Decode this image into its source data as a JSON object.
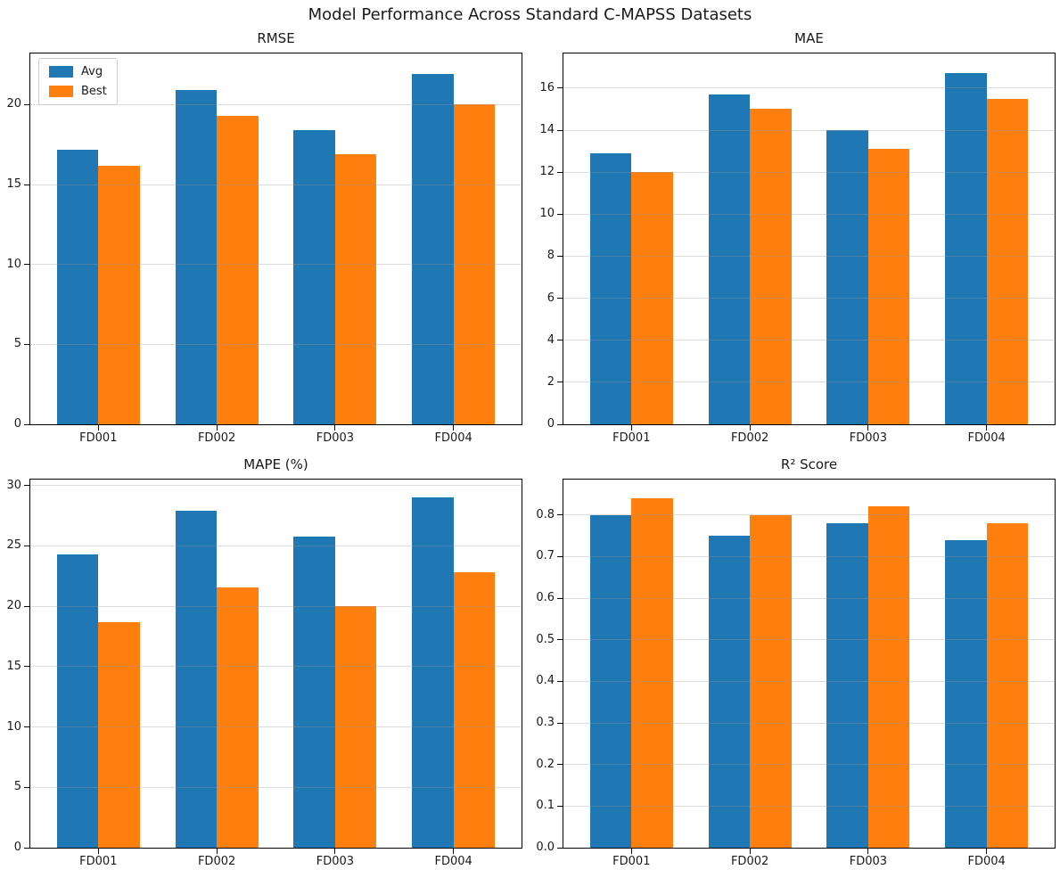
{
  "figure": {
    "title": "Model Performance Across Standard C-MAPSS Datasets"
  },
  "colors": {
    "avg": "#1f77b4",
    "best": "#ff7f0e",
    "grid": "#9a9a9a",
    "spine": "#000000",
    "background": "#ffffff"
  },
  "chart_data": [
    {
      "type": "bar",
      "title": "RMSE",
      "categories": [
        "FD001",
        "FD002",
        "FD003",
        "FD004"
      ],
      "series": [
        {
          "name": "Avg",
          "color": "#1f77b4",
          "values": [
            17.2,
            20.9,
            18.4,
            21.9
          ]
        },
        {
          "name": "Best",
          "color": "#ff7f0e",
          "values": [
            16.2,
            19.3,
            16.9,
            20.0
          ]
        }
      ],
      "ylim": [
        0,
        23.2
      ],
      "yticks": [
        0,
        5,
        10,
        15,
        20
      ],
      "ytick_labels": [
        "0",
        "5",
        "10",
        "15",
        "20"
      ],
      "xlabel": "",
      "ylabel": "",
      "grid": true,
      "bar_width": 0.35,
      "legend": true,
      "legend_position": "upper left"
    },
    {
      "type": "bar",
      "title": "MAE",
      "categories": [
        "FD001",
        "FD002",
        "FD003",
        "FD004"
      ],
      "series": [
        {
          "name": "Avg",
          "color": "#1f77b4",
          "values": [
            12.9,
            15.7,
            14.0,
            16.7
          ]
        },
        {
          "name": "Best",
          "color": "#ff7f0e",
          "values": [
            12.0,
            15.0,
            13.1,
            15.5
          ]
        }
      ],
      "ylim": [
        0,
        17.65
      ],
      "yticks": [
        0,
        2,
        4,
        6,
        8,
        10,
        12,
        14,
        16
      ],
      "ytick_labels": [
        "0",
        "2",
        "4",
        "6",
        "8",
        "10",
        "12",
        "14",
        "16"
      ],
      "xlabel": "",
      "ylabel": "",
      "grid": true,
      "bar_width": 0.35,
      "legend": false
    },
    {
      "type": "bar",
      "title": "MAPE (%)",
      "categories": [
        "FD001",
        "FD002",
        "FD003",
        "FD004"
      ],
      "series": [
        {
          "name": "Avg",
          "color": "#1f77b4",
          "values": [
            24.3,
            27.9,
            25.8,
            29.0
          ]
        },
        {
          "name": "Best",
          "color": "#ff7f0e",
          "values": [
            18.7,
            21.6,
            20.0,
            22.8
          ]
        }
      ],
      "ylim": [
        0,
        30.5
      ],
      "yticks": [
        0,
        5,
        10,
        15,
        20,
        25,
        30
      ],
      "ytick_labels": [
        "0",
        "5",
        "10",
        "15",
        "20",
        "25",
        "30"
      ],
      "xlabel": "",
      "ylabel": "",
      "grid": true,
      "bar_width": 0.35,
      "legend": false
    },
    {
      "type": "bar",
      "title": "R² Score",
      "categories": [
        "FD001",
        "FD002",
        "FD003",
        "FD004"
      ],
      "series": [
        {
          "name": "Avg",
          "color": "#1f77b4",
          "values": [
            0.8,
            0.75,
            0.78,
            0.74
          ]
        },
        {
          "name": "Best",
          "color": "#ff7f0e",
          "values": [
            0.84,
            0.8,
            0.82,
            0.78
          ]
        }
      ],
      "ylim": [
        0,
        0.885
      ],
      "yticks": [
        0.0,
        0.1,
        0.2,
        0.3,
        0.4,
        0.5,
        0.6,
        0.7,
        0.8
      ],
      "ytick_labels": [
        "0.0",
        "0.1",
        "0.2",
        "0.3",
        "0.4",
        "0.5",
        "0.6",
        "0.7",
        "0.8"
      ],
      "xlabel": "",
      "ylabel": "",
      "grid": true,
      "bar_width": 0.35,
      "legend": false
    }
  ]
}
